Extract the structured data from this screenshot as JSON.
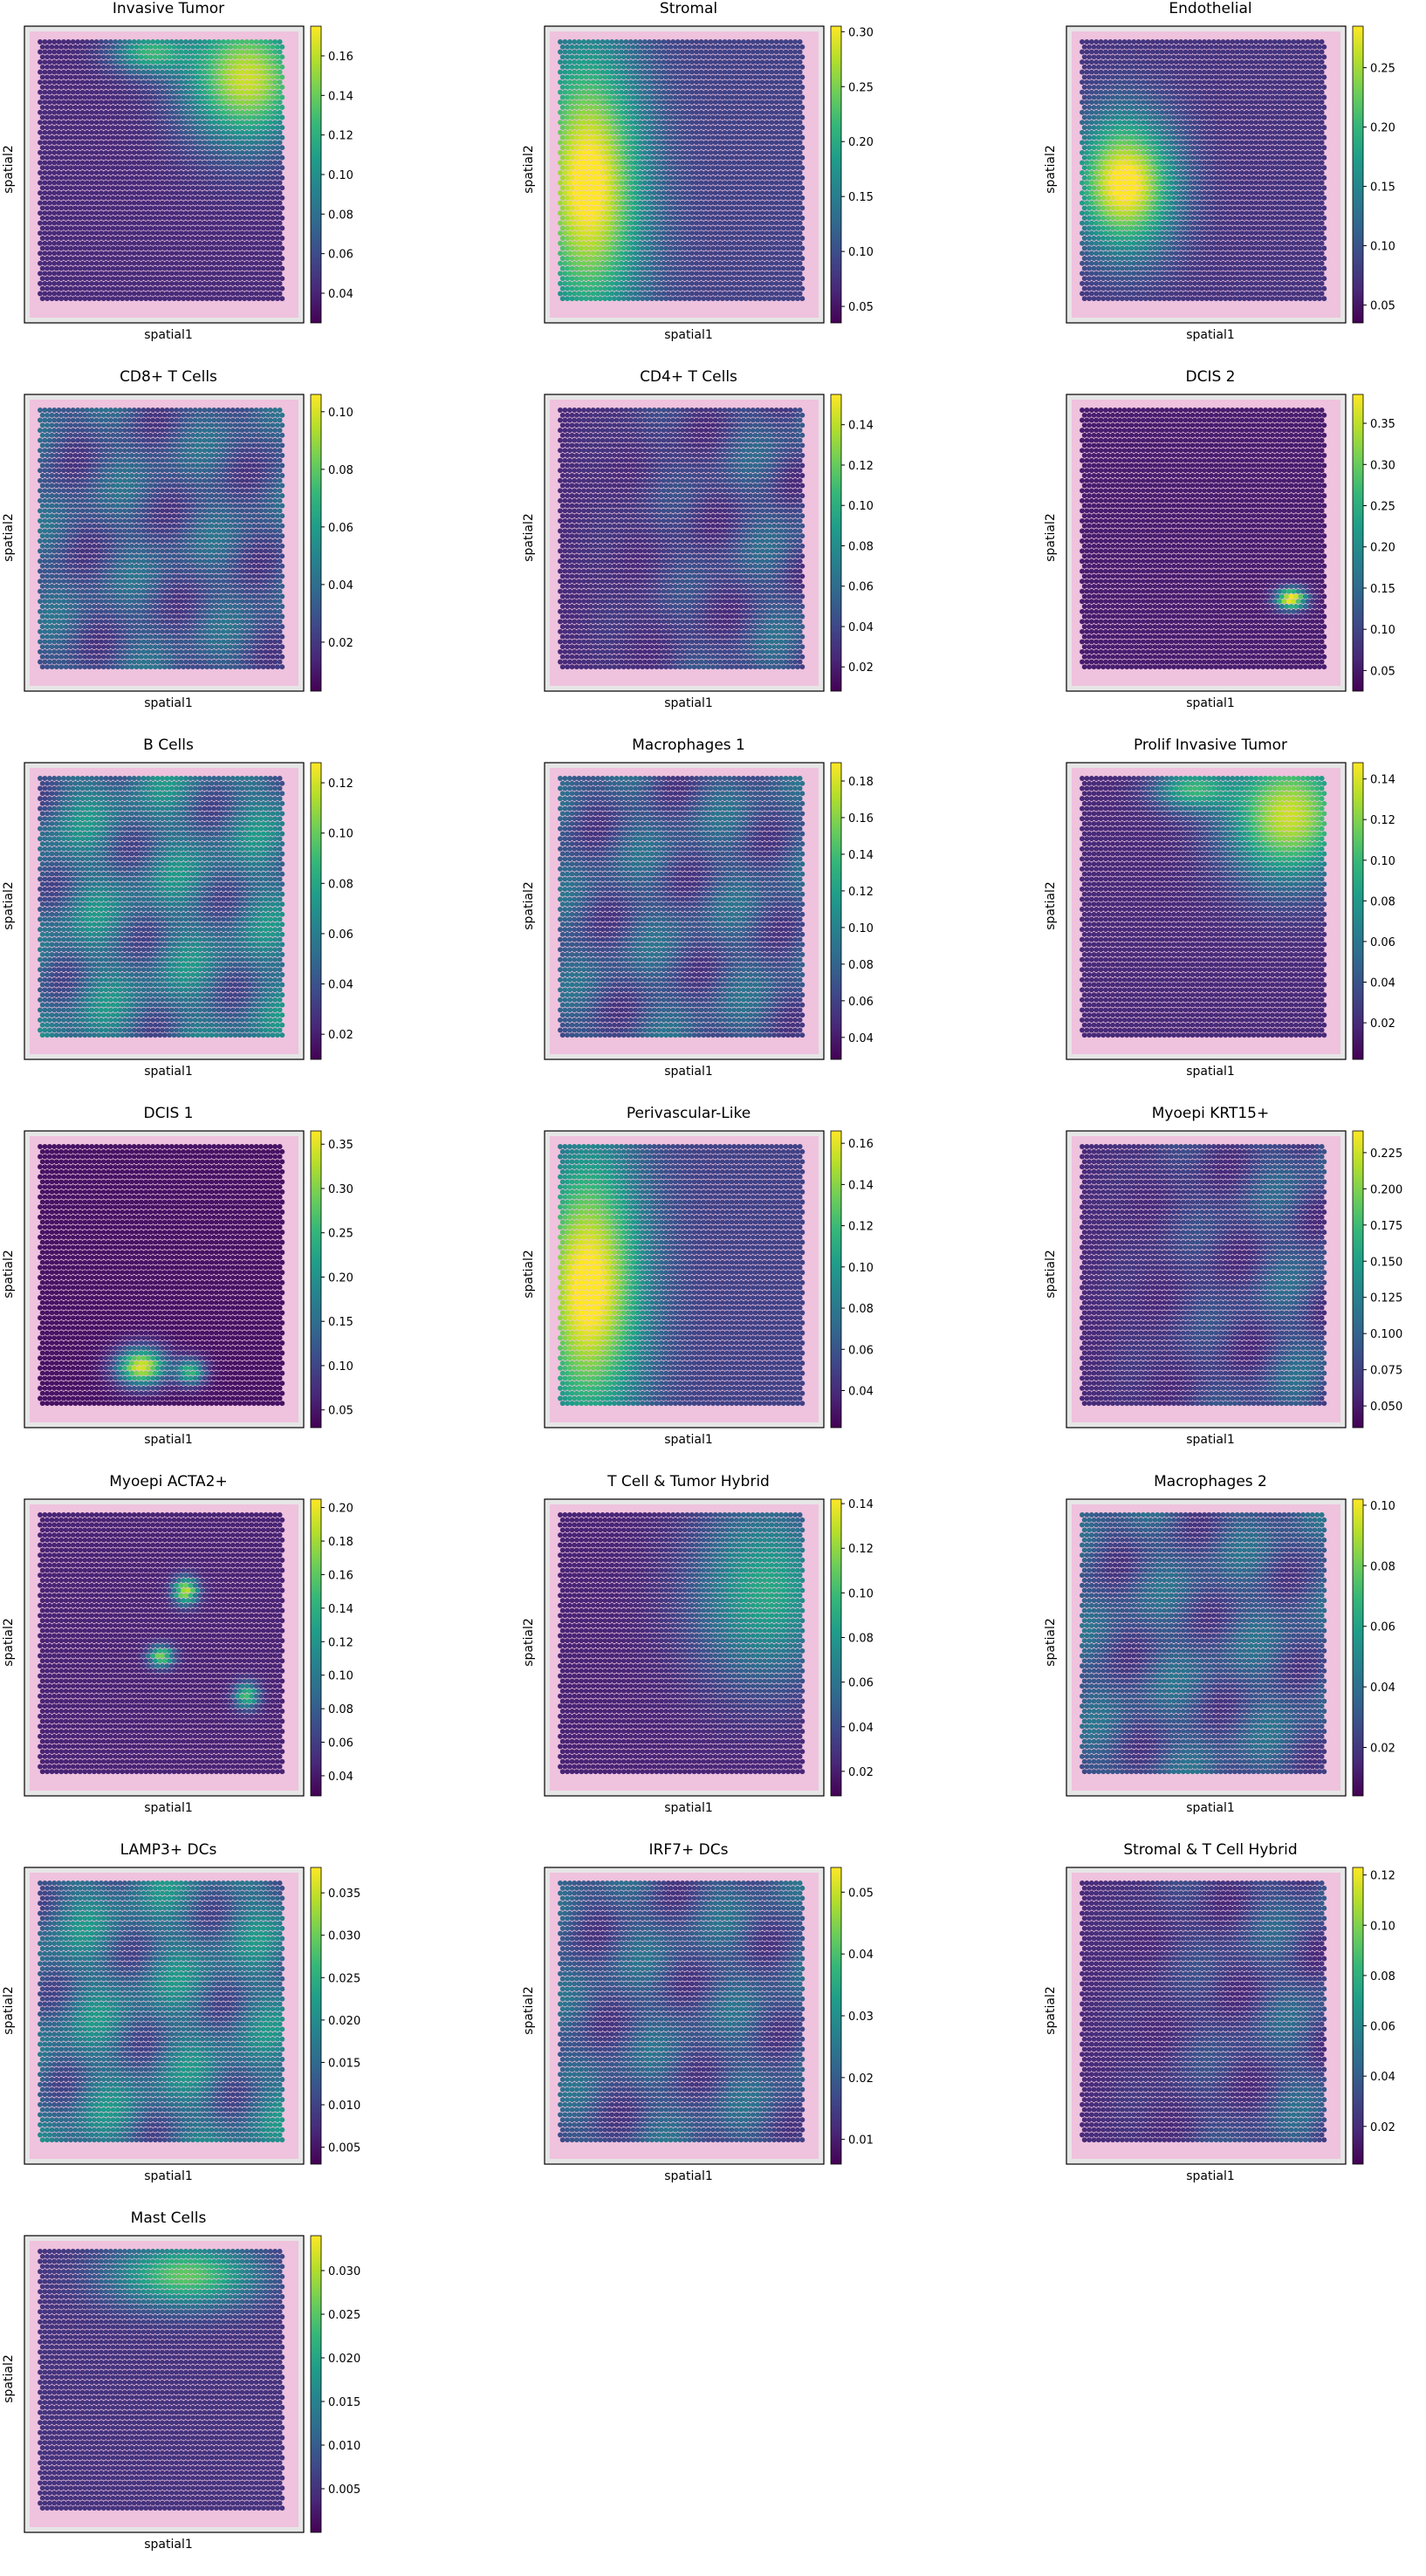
{
  "figure": {
    "xlabel": "spatial1",
    "ylabel": "spatial2",
    "colormap": [
      "#440154",
      "#482878",
      "#3e4989",
      "#31688e",
      "#26828e",
      "#1f9e89",
      "#35b779",
      "#6ece58",
      "#b5de2b",
      "#fde725"
    ],
    "background_colors": {
      "tissue": "#f2b6da",
      "slide": "#e6e6e6",
      "frame": "#000000"
    }
  },
  "chart_data": [
    {
      "type": "heatmap",
      "title": "Invasive Tumor",
      "xlabel": "spatial1",
      "ylabel": "spatial2",
      "colorbar_ticks": [
        "0.04",
        "0.06",
        "0.08",
        "0.10",
        "0.12",
        "0.14",
        "0.16"
      ],
      "clim": [
        0.025,
        0.175
      ],
      "pattern": "top-right",
      "grid": false
    },
    {
      "type": "heatmap",
      "title": "Stromal",
      "xlabel": "spatial1",
      "ylabel": "spatial2",
      "colorbar_ticks": [
        "0.05",
        "0.10",
        "0.15",
        "0.20",
        "0.25",
        "0.30"
      ],
      "clim": [
        0.035,
        0.305
      ],
      "pattern": "left",
      "grid": false
    },
    {
      "type": "heatmap",
      "title": "Endothelial",
      "xlabel": "spatial1",
      "ylabel": "spatial2",
      "colorbar_ticks": [
        "0.05",
        "0.10",
        "0.15",
        "0.20",
        "0.25"
      ],
      "clim": [
        0.035,
        0.285
      ],
      "pattern": "left-center",
      "grid": false
    },
    {
      "type": "heatmap",
      "title": "CD8+ T Cells",
      "xlabel": "spatial1",
      "ylabel": "spatial2",
      "colorbar_ticks": [
        "0.02",
        "0.04",
        "0.06",
        "0.08",
        "0.10"
      ],
      "clim": [
        0.003,
        0.106
      ],
      "pattern": "diffuse",
      "grid": false
    },
    {
      "type": "heatmap",
      "title": "CD4+ T Cells",
      "xlabel": "spatial1",
      "ylabel": "spatial2",
      "colorbar_ticks": [
        "0.02",
        "0.04",
        "0.06",
        "0.08",
        "0.10",
        "0.12",
        "0.14"
      ],
      "clim": [
        0.008,
        0.155
      ],
      "pattern": "diffuse-right",
      "grid": false
    },
    {
      "type": "heatmap",
      "title": "DCIS 2",
      "xlabel": "spatial1",
      "ylabel": "spatial2",
      "colorbar_ticks": [
        "0.05",
        "0.10",
        "0.15",
        "0.20",
        "0.25",
        "0.30",
        "0.35"
      ],
      "clim": [
        0.025,
        0.385
      ],
      "pattern": "spot-bottom-right",
      "grid": false
    },
    {
      "type": "heatmap",
      "title": "B Cells",
      "xlabel": "spatial1",
      "ylabel": "spatial2",
      "colorbar_ticks": [
        "0.02",
        "0.04",
        "0.06",
        "0.08",
        "0.10",
        "0.12"
      ],
      "clim": [
        0.01,
        0.128
      ],
      "pattern": "patchy",
      "grid": false
    },
    {
      "type": "heatmap",
      "title": "Macrophages 1",
      "xlabel": "spatial1",
      "ylabel": "spatial2",
      "colorbar_ticks": [
        "0.04",
        "0.06",
        "0.08",
        "0.10",
        "0.12",
        "0.14",
        "0.16",
        "0.18"
      ],
      "clim": [
        0.028,
        0.19
      ],
      "pattern": "diffuse",
      "grid": false
    },
    {
      "type": "heatmap",
      "title": "Prolif Invasive Tumor",
      "xlabel": "spatial1",
      "ylabel": "spatial2",
      "colorbar_ticks": [
        "0.02",
        "0.04",
        "0.06",
        "0.08",
        "0.10",
        "0.12",
        "0.14"
      ],
      "clim": [
        0.002,
        0.148
      ],
      "pattern": "top-right",
      "grid": false
    },
    {
      "type": "heatmap",
      "title": "DCIS 1",
      "xlabel": "spatial1",
      "ylabel": "spatial2",
      "colorbar_ticks": [
        "0.05",
        "0.10",
        "0.15",
        "0.20",
        "0.25",
        "0.30",
        "0.35"
      ],
      "clim": [
        0.03,
        0.365
      ],
      "pattern": "spots-bottom",
      "grid": false
    },
    {
      "type": "heatmap",
      "title": "Perivascular-Like",
      "xlabel": "spatial1",
      "ylabel": "spatial2",
      "colorbar_ticks": [
        "0.04",
        "0.06",
        "0.08",
        "0.10",
        "0.12",
        "0.14",
        "0.16"
      ],
      "clim": [
        0.022,
        0.166
      ],
      "pattern": "left",
      "grid": false
    },
    {
      "type": "heatmap",
      "title": "Myoepi KRT15+",
      "xlabel": "spatial1",
      "ylabel": "spatial2",
      "colorbar_ticks": [
        "0.050",
        "0.075",
        "0.100",
        "0.125",
        "0.150",
        "0.175",
        "0.200",
        "0.225"
      ],
      "clim": [
        0.035,
        0.24
      ],
      "pattern": "diffuse-right",
      "grid": false
    },
    {
      "type": "heatmap",
      "title": "Myoepi ACTA2+",
      "xlabel": "spatial1",
      "ylabel": "spatial2",
      "colorbar_ticks": [
        "0.04",
        "0.06",
        "0.08",
        "0.10",
        "0.12",
        "0.14",
        "0.16",
        "0.18",
        "0.20"
      ],
      "clim": [
        0.028,
        0.205
      ],
      "pattern": "small-spots",
      "grid": false
    },
    {
      "type": "heatmap",
      "title": "T Cell & Tumor Hybrid",
      "xlabel": "spatial1",
      "ylabel": "spatial2",
      "colorbar_ticks": [
        "0.02",
        "0.04",
        "0.06",
        "0.08",
        "0.10",
        "0.12",
        "0.14"
      ],
      "clim": [
        0.009,
        0.142
      ],
      "pattern": "right-half",
      "grid": false
    },
    {
      "type": "heatmap",
      "title": "Macrophages 2",
      "xlabel": "spatial1",
      "ylabel": "spatial2",
      "colorbar_ticks": [
        "0.02",
        "0.04",
        "0.06",
        "0.08",
        "0.10"
      ],
      "clim": [
        0.004,
        0.102
      ],
      "pattern": "diffuse",
      "grid": false
    },
    {
      "type": "heatmap",
      "title": "LAMP3+ DCs",
      "xlabel": "spatial1",
      "ylabel": "spatial2",
      "colorbar_ticks": [
        "0.005",
        "0.010",
        "0.015",
        "0.020",
        "0.025",
        "0.030",
        "0.035"
      ],
      "clim": [
        0.003,
        0.038
      ],
      "pattern": "patchy",
      "grid": false
    },
    {
      "type": "heatmap",
      "title": "IRF7+ DCs",
      "xlabel": "spatial1",
      "ylabel": "spatial2",
      "colorbar_ticks": [
        "0.01",
        "0.02",
        "0.03",
        "0.04",
        "0.05"
      ],
      "clim": [
        0.006,
        0.054
      ],
      "pattern": "diffuse",
      "grid": false
    },
    {
      "type": "heatmap",
      "title": "Stromal & T Cell Hybrid",
      "xlabel": "spatial1",
      "ylabel": "spatial2",
      "colorbar_ticks": [
        "0.02",
        "0.04",
        "0.06",
        "0.08",
        "0.10",
        "0.12"
      ],
      "clim": [
        0.005,
        0.123
      ],
      "pattern": "diffuse-right",
      "grid": false
    },
    {
      "type": "heatmap",
      "title": "Mast Cells",
      "xlabel": "spatial1",
      "ylabel": "spatial2",
      "colorbar_ticks": [
        "0.005",
        "0.010",
        "0.015",
        "0.020",
        "0.025",
        "0.030"
      ],
      "clim": [
        0.0,
        0.034
      ],
      "pattern": "top-band",
      "grid": false
    }
  ]
}
